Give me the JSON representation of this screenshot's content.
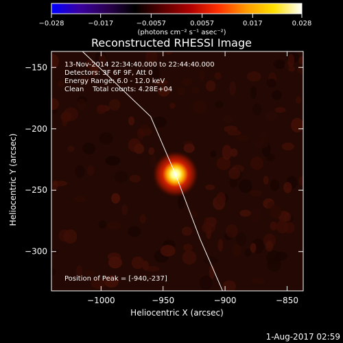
{
  "chart_data": {
    "type": "heatmap",
    "title": "Reconstructed RHESSI Image",
    "xlabel": "Heliocentric X (arcsec)",
    "ylabel": "Heliocentric Y (arcsec)",
    "xlim": [
      -1040,
      -837
    ],
    "ylim": [
      -332,
      -137
    ],
    "x_ticks": [
      -1000,
      -950,
      -900,
      -850
    ],
    "x_tick_labels": [
      "−1000",
      "−950",
      "−900",
      "−850"
    ],
    "y_ticks": [
      -150,
      -200,
      -250,
      -300
    ],
    "y_tick_labels": [
      "−150",
      "−200",
      "−250",
      "−300"
    ],
    "colorbar": {
      "min": -0.028,
      "max": 0.028,
      "ticks": [
        -0.028,
        -0.017,
        -0.0057,
        0.0057,
        0.017,
        0.028
      ],
      "tick_labels": [
        "−0.028",
        "−0.017",
        "−0.0057",
        "0.0057",
        "0.017",
        "0.028"
      ],
      "unit_label": "(photons cm⁻² s⁻¹ asec⁻²)"
    },
    "peak": {
      "x": -940,
      "y": -237
    },
    "limb_points": [
      [
        -1015,
        -137
      ],
      [
        -960,
        -190
      ],
      [
        -940,
        -237
      ],
      [
        -920,
        -290
      ],
      [
        -902,
        -332
      ]
    ],
    "grid": false
  },
  "annotations": {
    "time_range": "13-Nov-2014 22:34:40.000 to 22:44:40.000",
    "detectors": "Detectors: 3F 6F 9F, Att 0",
    "energy": "Energy Range: 6.0 - 12.0 keV",
    "clean": "Clean    Total counts: 4.28E+04",
    "peak_label": "Position of Peak = [-940,-237]"
  },
  "footer": {
    "date": "1-Aug-2017 02:59"
  },
  "colors": {
    "background": "#000000",
    "axes": "#ffffff",
    "colormap": [
      "#0000ff",
      "#3a00a0",
      "#2a0050",
      "#000000",
      "#5a0000",
      "#b00000",
      "#ff3000",
      "#ff9a00",
      "#ffe000",
      "#ffffff"
    ]
  }
}
